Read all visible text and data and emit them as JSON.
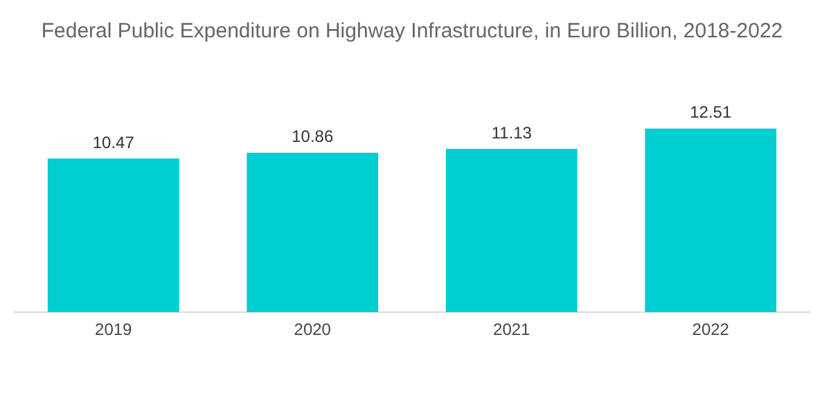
{
  "chart_data": {
    "type": "bar",
    "title": "Federal Public Expenditure on Highway Infrastructure, in Euro Billion, 2018-2022",
    "categories": [
      "2019",
      "2020",
      "2021",
      "2022"
    ],
    "values": [
      10.47,
      10.86,
      11.13,
      12.51
    ],
    "color": "#00ced1",
    "data_labels": true,
    "grid": false,
    "legend": false
  }
}
